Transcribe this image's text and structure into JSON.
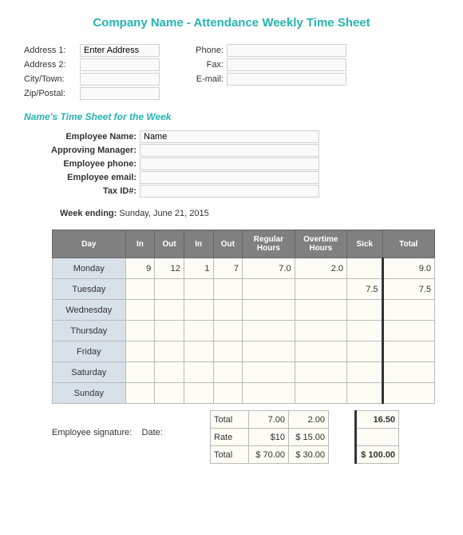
{
  "title": "Company Name - Attendance Weekly Time Sheet",
  "contact": {
    "address1_label": "Address 1:",
    "address1_value": "Enter Address",
    "address2_label": "Address 2:",
    "city_label": "City/Town:",
    "zip_label": "Zip/Postal:",
    "phone_label": "Phone:",
    "fax_label": "Fax:",
    "email_label": "E-mail:"
  },
  "subtitle": "Name's Time Sheet for the Week",
  "employee": {
    "name_label": "Employee Name:",
    "name_value": "Name",
    "manager_label": "Approving Manager:",
    "phone_label": "Employee phone:",
    "email_label": "Employee email:",
    "tax_label": "Tax ID#:"
  },
  "week_ending_label": "Week ending:",
  "week_ending_value": "Sunday, June 21, 2015",
  "headers": {
    "day": "Day",
    "in1": "In",
    "out1": "Out",
    "in2": "In",
    "out2": "Out",
    "regular": "Regular Hours",
    "overtime": "Overtime Hours",
    "sick": "Sick",
    "total": "Total"
  },
  "rows": [
    {
      "day": "Monday",
      "in1": "9",
      "out1": "12",
      "in2": "1",
      "out2": "7",
      "regular": "7.0",
      "overtime": "2.0",
      "sick": "",
      "total": "9.0"
    },
    {
      "day": "Tuesday",
      "in1": "",
      "out1": "",
      "in2": "",
      "out2": "",
      "regular": "",
      "overtime": "",
      "sick": "7.5",
      "total": "7.5"
    },
    {
      "day": "Wednesday",
      "in1": "",
      "out1": "",
      "in2": "",
      "out2": "",
      "regular": "",
      "overtime": "",
      "sick": "",
      "total": ""
    },
    {
      "day": "Thursday",
      "in1": "",
      "out1": "",
      "in2": "",
      "out2": "",
      "regular": "",
      "overtime": "",
      "sick": "",
      "total": ""
    },
    {
      "day": "Friday",
      "in1": "",
      "out1": "",
      "in2": "",
      "out2": "",
      "regular": "",
      "overtime": "",
      "sick": "",
      "total": ""
    },
    {
      "day": "Saturday",
      "in1": "",
      "out1": "",
      "in2": "",
      "out2": "",
      "regular": "",
      "overtime": "",
      "sick": "",
      "total": ""
    },
    {
      "day": "Sunday",
      "in1": "",
      "out1": "",
      "in2": "",
      "out2": "",
      "regular": "",
      "overtime": "",
      "sick": "",
      "total": ""
    }
  ],
  "summary": {
    "total_label": "Total",
    "total_regular": "7.00",
    "total_overtime": "2.00",
    "total_total": "16.50",
    "rate_label": "Rate",
    "rate_regular": "$10",
    "rate_overtime": "$   15.00",
    "grand_label": "Total",
    "grand_regular": "$  70.00",
    "grand_overtime": "$   30.00",
    "grand_total": "$  100.00"
  },
  "signature_label": "Employee signature:",
  "date_label": "Date:"
}
